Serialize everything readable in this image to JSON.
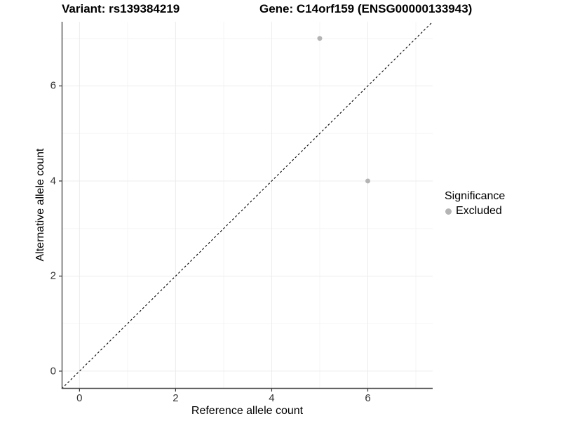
{
  "header": {
    "left_title": "Variant: rs139384219",
    "right_title": "Gene: C14orf159 (ENSG00000133943)"
  },
  "chart_data": {
    "type": "scatter",
    "xlabel": "Reference allele count",
    "ylabel": "Alternative allele count",
    "xlim": [
      -0.37,
      7.35
    ],
    "ylim": [
      -0.37,
      7.35
    ],
    "major_ticks": [
      0,
      2,
      4,
      6
    ],
    "minor_ticks": [
      1,
      3,
      5,
      7
    ],
    "grid": true,
    "series": [
      {
        "name": "Excluded",
        "color": "#b4b4b4",
        "points": [
          {
            "x": 5,
            "y": 7
          },
          {
            "x": 6,
            "y": 4
          }
        ]
      }
    ],
    "identity_line": {
      "style": "dashed",
      "color": "#000000",
      "from": -0.37,
      "to": 7.35
    },
    "legend": {
      "position": "right",
      "title": "Significance",
      "entries": [
        {
          "label": "Excluded",
          "color": "#b4b4b4"
        }
      ]
    },
    "colors": {
      "axis_line": "#4d4d4d",
      "tick_mark": "#333333",
      "major_grid": "#ececec",
      "minor_grid": "#f5f5f5",
      "tick_text": "#333333"
    }
  }
}
